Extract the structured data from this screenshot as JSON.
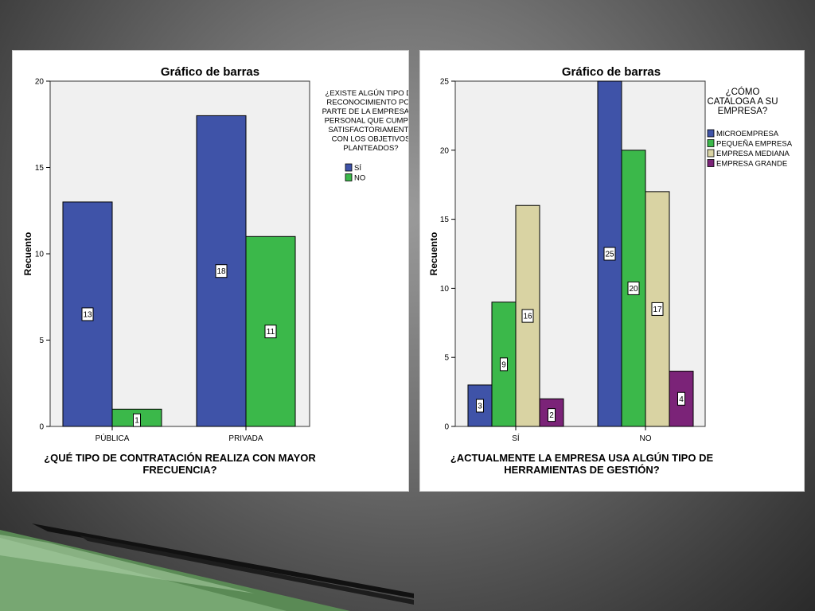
{
  "colors": {
    "blue": "#3f53a8",
    "green": "#3bb84a",
    "tan": "#d9d3a3",
    "purple": "#7b2378",
    "plot_bg": "#f0f0f0"
  },
  "chart_data": [
    {
      "type": "bar",
      "title": "Gráfico de barras",
      "ylabel": "Recuento",
      "xlabel_lines": [
        "¿QUÉ TIPO DE CONTRATACIÓN REALIZA CON MAYOR",
        "FRECUENCIA?"
      ],
      "categories": [
        "PÚBLICA",
        "PRIVADA"
      ],
      "ylim": [
        0,
        20
      ],
      "yticks": [
        "0",
        "5",
        "10",
        "15",
        "20"
      ],
      "legend_title_lines": [
        "¿EXISTE ALGÚN TIPO DE",
        "RECONOCIMIENTO POR",
        "PARTE DE LA EMPRESA AL",
        "PERSONAL QUE CUMPLE",
        "SATISFACTORIAMENTE",
        "CON LOS OBJETIVOS",
        "PLANTEADOS?"
      ],
      "legend_position": "right",
      "series": [
        {
          "name": "SÍ",
          "color": "#3f53a8",
          "values": [
            13,
            18
          ],
          "labels": [
            "13",
            "18"
          ]
        },
        {
          "name": "NO",
          "color": "#3bb84a",
          "values": [
            1,
            11
          ],
          "labels": [
            "1",
            "11"
          ]
        }
      ]
    },
    {
      "type": "bar",
      "title": "Gráfico de barras",
      "ylabel": "Recuento",
      "xlabel_lines": [
        "¿ACTUALMENTE LA EMPRESA USA ALGÚN TIPO DE",
        "HERRAMIENTAS DE GESTIÓN?"
      ],
      "categories": [
        "SÍ",
        "NO"
      ],
      "ylim": [
        0,
        25
      ],
      "yticks": [
        "0",
        "5",
        "10",
        "15",
        "20",
        "25"
      ],
      "legend_title_lines": [
        "¿CÓMO",
        "CATALOGA A SU",
        "EMPRESA?"
      ],
      "legend_position": "right",
      "series": [
        {
          "name": "MICROEMPRESA",
          "color": "#3f53a8",
          "values": [
            3,
            25
          ],
          "labels": [
            "3",
            "25"
          ]
        },
        {
          "name": "PEQUEÑA EMPRESA",
          "color": "#3bb84a",
          "values": [
            9,
            20
          ],
          "labels": [
            "9",
            "20"
          ]
        },
        {
          "name": "EMPRESA MEDIANA",
          "color": "#d9d3a3",
          "values": [
            16,
            17
          ],
          "labels": [
            "16",
            "17"
          ]
        },
        {
          "name": "EMPRESA GRANDE",
          "color": "#7b2378",
          "values": [
            2,
            4
          ],
          "labels": [
            "2",
            "4"
          ]
        }
      ]
    }
  ]
}
